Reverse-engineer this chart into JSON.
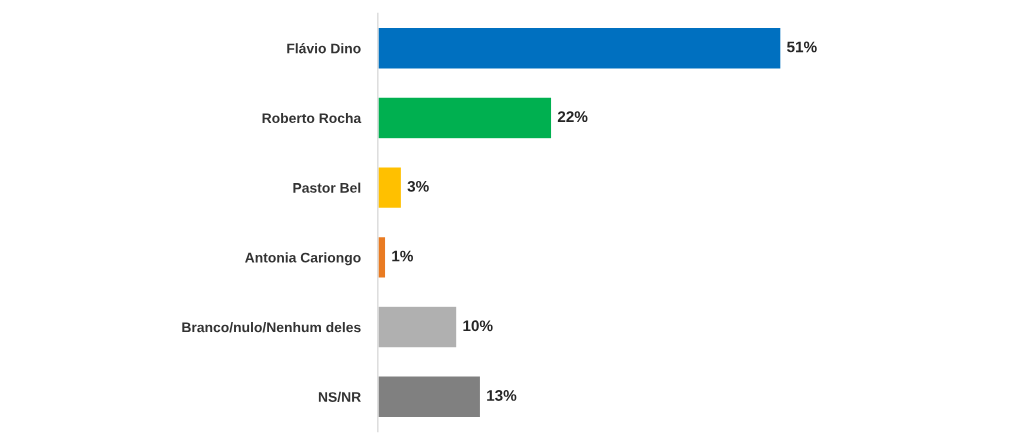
{
  "chart_data": {
    "type": "bar",
    "orientation": "horizontal",
    "categories": [
      "Flávio Dino",
      "Roberto Rocha",
      "Pastor Bel",
      "Antonia Cariongo",
      "Branco/nulo/Nenhum deles",
      "NS/NR"
    ],
    "values": [
      51,
      22,
      3,
      1,
      10,
      13
    ],
    "colors": [
      "#0070c0",
      "#00b050",
      "#ffc000",
      "#e97b22",
      "#b0b0b0",
      "#808080"
    ],
    "value_labels": [
      "51%",
      "22%",
      "3%",
      "1%",
      "10%",
      "13%"
    ],
    "grid": false,
    "legend": false
  }
}
